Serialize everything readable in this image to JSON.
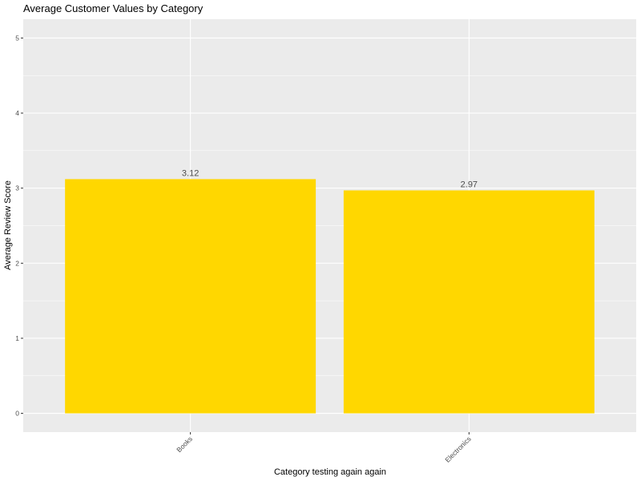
{
  "chart_data": {
    "type": "bar",
    "title": "Average Customer Values by Category",
    "xlabel": "Category testing again again",
    "ylabel": "Average Review Score",
    "categories": [
      "Books",
      "Electronics"
    ],
    "values": [
      3.12,
      2.97
    ],
    "data_labels": [
      "3.12",
      "2.97"
    ],
    "ylim": [
      -0.25,
      5.25
    ],
    "yticks": [
      0,
      1,
      2,
      3,
      4,
      5
    ],
    "ytick_labels": [
      "0",
      "1",
      "2",
      "3",
      "4",
      "5"
    ],
    "grid": true,
    "legend": "none",
    "colors": {
      "bar": "#FFD700",
      "panel": "#EBEBEB",
      "grid": "#FFFFFF",
      "tick": "#4D4D4D"
    }
  }
}
